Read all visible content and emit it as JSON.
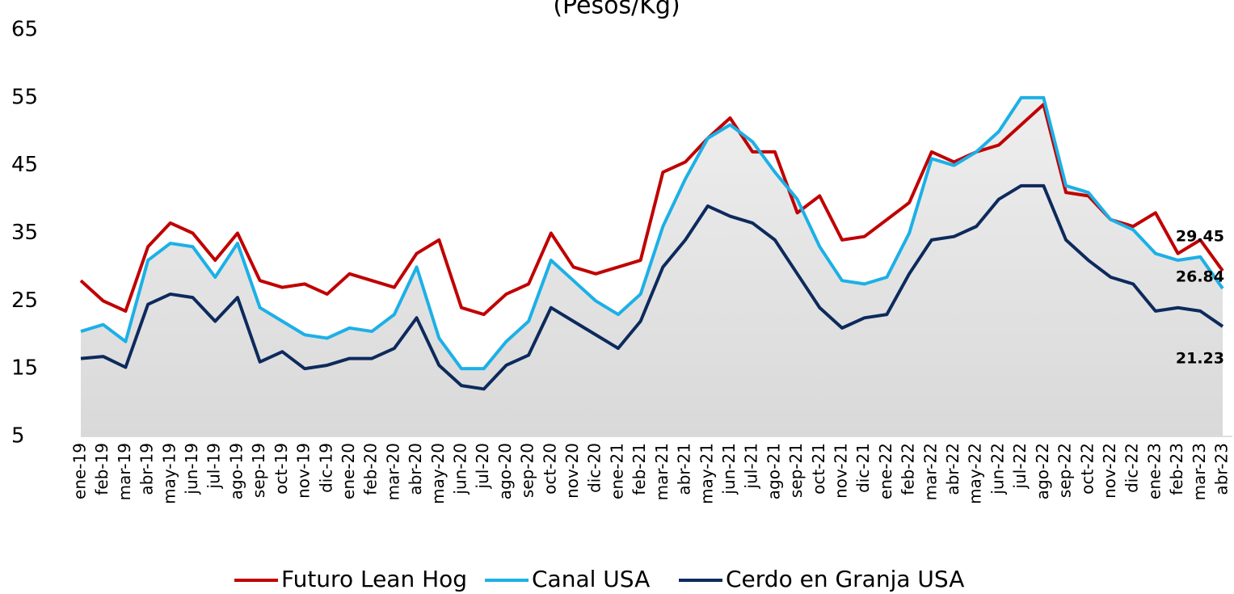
{
  "chart_data": {
    "type": "line",
    "title": "(Pesos/Kg)",
    "categories": [
      "ene-19",
      "feb-19",
      "mar-19",
      "abr-19",
      "may-19",
      "jun-19",
      "jul-19",
      "ago-19",
      "sep-19",
      "oct-19",
      "nov-19",
      "dic-19",
      "ene-20",
      "feb-20",
      "mar-20",
      "abr-20",
      "may-20",
      "jun-20",
      "jul-20",
      "ago-20",
      "sep-20",
      "oct-20",
      "nov-20",
      "dic-20",
      "ene-21",
      "feb-21",
      "mar-21",
      "abr-21",
      "may-21",
      "jun-21",
      "jul-21",
      "ago-21",
      "sep-21",
      "oct-21",
      "nov-21",
      "dic-21",
      "ene-22",
      "feb-22",
      "mar-22",
      "abr-22",
      "may-22",
      "jun-22",
      "jul-22",
      "ago-22",
      "sep-22",
      "oct-22",
      "nov-22",
      "dic-22",
      "ene-23",
      "feb-23",
      "mar-23",
      "abr-23"
    ],
    "series": [
      {
        "name": "Futuro Lean Hog",
        "color": "#c00000",
        "values": [
          28,
          25,
          23.5,
          33,
          36.5,
          35,
          31,
          35,
          28,
          27,
          27.5,
          26,
          29,
          28,
          27,
          32,
          34,
          24,
          23,
          26,
          27.5,
          35,
          30,
          29,
          30,
          31,
          44,
          45.5,
          49,
          52,
          47,
          47,
          38,
          40.5,
          34,
          34.5,
          37,
          39.5,
          47,
          45.5,
          47,
          48,
          51,
          54,
          41,
          40.5,
          37,
          36,
          38,
          32,
          34,
          29.45
        ]
      },
      {
        "name": "Canal USA",
        "color": "#1cb0e6",
        "values": [
          20.5,
          21.5,
          19,
          31,
          33.5,
          33,
          28.5,
          33.5,
          24,
          22,
          20,
          19.5,
          21,
          20.5,
          23,
          30,
          19.5,
          15,
          15,
          19,
          22,
          31,
          28,
          25,
          23,
          26,
          36,
          43,
          49,
          51,
          48.5,
          44,
          40,
          33,
          28,
          27.5,
          28.5,
          35,
          46,
          45,
          47,
          50,
          55,
          55,
          42,
          41,
          37,
          35.5,
          32,
          31,
          31.5,
          26.84
        ]
      },
      {
        "name": "Cerdo en Granja USA",
        "color": "#0d2a5c",
        "values": [
          16.5,
          16.8,
          15.2,
          24.5,
          26,
          25.5,
          22,
          25.5,
          16,
          17.5,
          15,
          15.5,
          16.5,
          16.5,
          18,
          22.5,
          15.5,
          12.5,
          12,
          15.5,
          17,
          24,
          22,
          20,
          18,
          22,
          30,
          34,
          39,
          37.5,
          36.5,
          34,
          29,
          24,
          21,
          22.5,
          23,
          29,
          34,
          34.5,
          36,
          40,
          42,
          42,
          34,
          31,
          28.5,
          27.5,
          23.5,
          24,
          23.5,
          21.23
        ]
      }
    ],
    "ylim": [
      5,
      65
    ],
    "yticks": [
      5,
      15,
      25,
      35,
      45,
      55,
      65
    ],
    "legend": "bottom"
  }
}
